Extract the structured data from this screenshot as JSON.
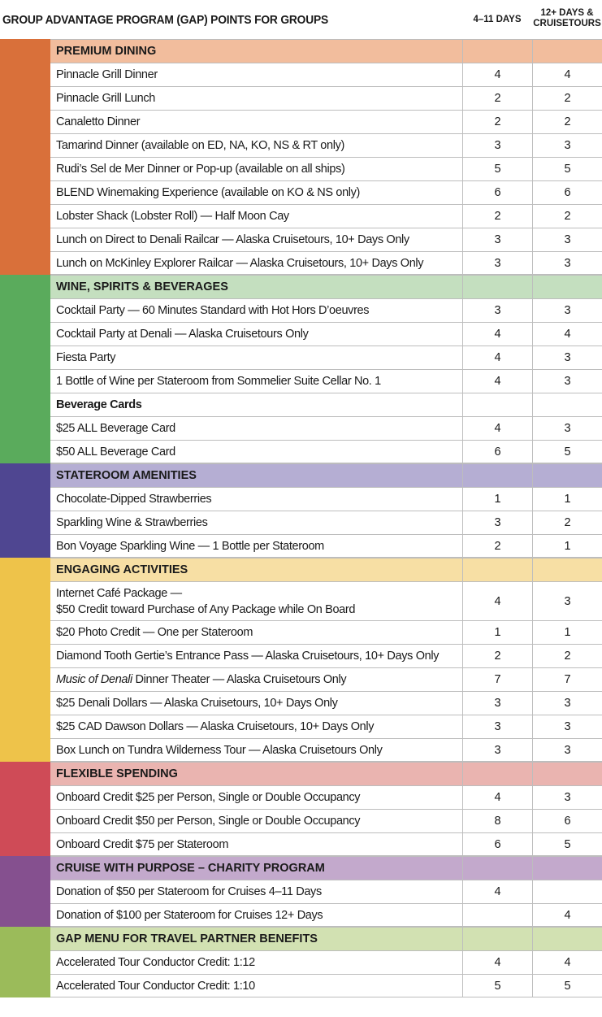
{
  "header": {
    "title": "GROUP ADVANTAGE PROGRAM (GAP) POINTS FOR GROUPS",
    "col1": "4–11 DAYS",
    "col2_line1": "12+ DAYS &",
    "col2_line2": "CRUISETOURS"
  },
  "sections": [
    {
      "title": "PREMIUM DINING",
      "stripe_color": "#d9703a",
      "header_color": "#f2bd9d",
      "rows": [
        {
          "label": "Pinnacle Grill Dinner",
          "v1": "4",
          "v2": "4"
        },
        {
          "label": "Pinnacle Grill Lunch",
          "v1": "2",
          "v2": "2"
        },
        {
          "label": "Canaletto Dinner",
          "v1": "2",
          "v2": "2"
        },
        {
          "label": "Tamarind Dinner (available on ED, NA, KO, NS & RT only)",
          "v1": "3",
          "v2": "3"
        },
        {
          "label": "Rudi’s Sel de Mer Dinner or Pop-up (available on all ships)",
          "v1": "5",
          "v2": "5"
        },
        {
          "label": "BLEND Winemaking Experience (available on KO & NS only)",
          "v1": "6",
          "v2": "6"
        },
        {
          "label": "Lobster Shack (Lobster Roll) — Half Moon Cay",
          "v1": "2",
          "v2": "2"
        },
        {
          "label": "Lunch on Direct to Denali Railcar — Alaska Cruisetours, 10+ Days Only",
          "v1": "3",
          "v2": "3"
        },
        {
          "label": "Lunch on McKinley Explorer Railcar — Alaska Cruisetours, 10+ Days Only",
          "v1": "3",
          "v2": "3"
        }
      ]
    },
    {
      "title": "WINE, SPIRITS & BEVERAGES",
      "stripe_color": "#5aab5c",
      "header_color": "#c4dfbf",
      "rows": [
        {
          "label": "Cocktail Party — 60 Minutes Standard with Hot Hors D’oeuvres",
          "v1": "3",
          "v2": "3"
        },
        {
          "label": "Cocktail Party at Denali — Alaska Cruisetours Only",
          "v1": "4",
          "v2": "4"
        },
        {
          "label": "Fiesta Party",
          "v1": "4",
          "v2": "3"
        },
        {
          "label": "1 Bottle of Wine per Stateroom from Sommelier Suite Cellar No. 1",
          "v1": "4",
          "v2": "3"
        },
        {
          "label": "Beverage Cards",
          "v1": "",
          "v2": "",
          "sub": true
        },
        {
          "label": "$25 ALL Beverage Card",
          "v1": "4",
          "v2": "3"
        },
        {
          "label": "$50 ALL Beverage Card",
          "v1": "6",
          "v2": "5"
        }
      ]
    },
    {
      "title": "STATEROOM AMENITIES",
      "stripe_color": "#4f4691",
      "header_color": "#b5aed3",
      "rows": [
        {
          "label": "Chocolate-Dipped Strawberries",
          "v1": "1",
          "v2": "1"
        },
        {
          "label": "Sparkling Wine & Strawberries",
          "v1": "3",
          "v2": "2"
        },
        {
          "label": "Bon Voyage Sparkling Wine — 1 Bottle per Stateroom",
          "v1": "2",
          "v2": "1"
        }
      ]
    },
    {
      "title": "ENGAGING ACTIVITIES",
      "stripe_color": "#eec34a",
      "header_color": "#f7dfa4",
      "rows": [
        {
          "label": "Internet Café Package —",
          "label2": "$50 Credit toward Purchase of Any Package while On Board",
          "v1": "4",
          "v2": "3",
          "tall": true
        },
        {
          "label": "$20 Photo Credit — One per Stateroom",
          "v1": "1",
          "v2": "1"
        },
        {
          "label": "Diamond Tooth Gertie’s Entrance Pass — Alaska Cruisetours, 10+ Days Only",
          "v1": "2",
          "v2": "2"
        },
        {
          "label": "Music of Denali Dinner Theater — Alaska Cruisetours Only",
          "v1": "7",
          "v2": "7"
        },
        {
          "label": "$25 Denali Dollars — Alaska Cruisetours, 10+ Days Only",
          "v1": "3",
          "v2": "3"
        },
        {
          "label": "$25 CAD Dawson Dollars — Alaska Cruisetours, 10+ Days Only",
          "v1": "3",
          "v2": "3"
        },
        {
          "label": "Box Lunch on Tundra Wilderness Tour — Alaska Cruisetours Only",
          "v1": "3",
          "v2": "3"
        }
      ]
    },
    {
      "title": "FLEXIBLE SPENDING",
      "stripe_color": "#cf4b57",
      "header_color": "#eab4b0",
      "rows": [
        {
          "label": "Onboard Credit $25 per Person, Single or Double Occupancy",
          "v1": "4",
          "v2": "3"
        },
        {
          "label": "Onboard Credit $50 per Person, Single or Double Occupancy",
          "v1": "8",
          "v2": "6"
        },
        {
          "label": "Onboard Credit $75 per Stateroom",
          "v1": "6",
          "v2": "5"
        }
      ]
    },
    {
      "title": "CRUISE WITH PURPOSE – CHARITY PROGRAM",
      "stripe_color": "#85508f",
      "header_color": "#c3a9cc",
      "rows": [
        {
          "label": "Donation of $50 per Stateroom for Cruises 4–11 Days",
          "v1": "4",
          "v2": ""
        },
        {
          "label": "Donation of $100 per Stateroom for Cruises 12+ Days",
          "v1": "",
          "v2": "4"
        }
      ]
    },
    {
      "title": "GAP MENU FOR TRAVEL PARTNER BENEFITS",
      "stripe_color": "#9bbb5a",
      "header_color": "#d2e1b2",
      "rows": [
        {
          "label": "Accelerated Tour Conductor Credit: 1:12",
          "v1": "4",
          "v2": "4"
        },
        {
          "label": "Accelerated Tour Conductor Credit: 1:10",
          "v1": "5",
          "v2": "5"
        }
      ]
    }
  ]
}
